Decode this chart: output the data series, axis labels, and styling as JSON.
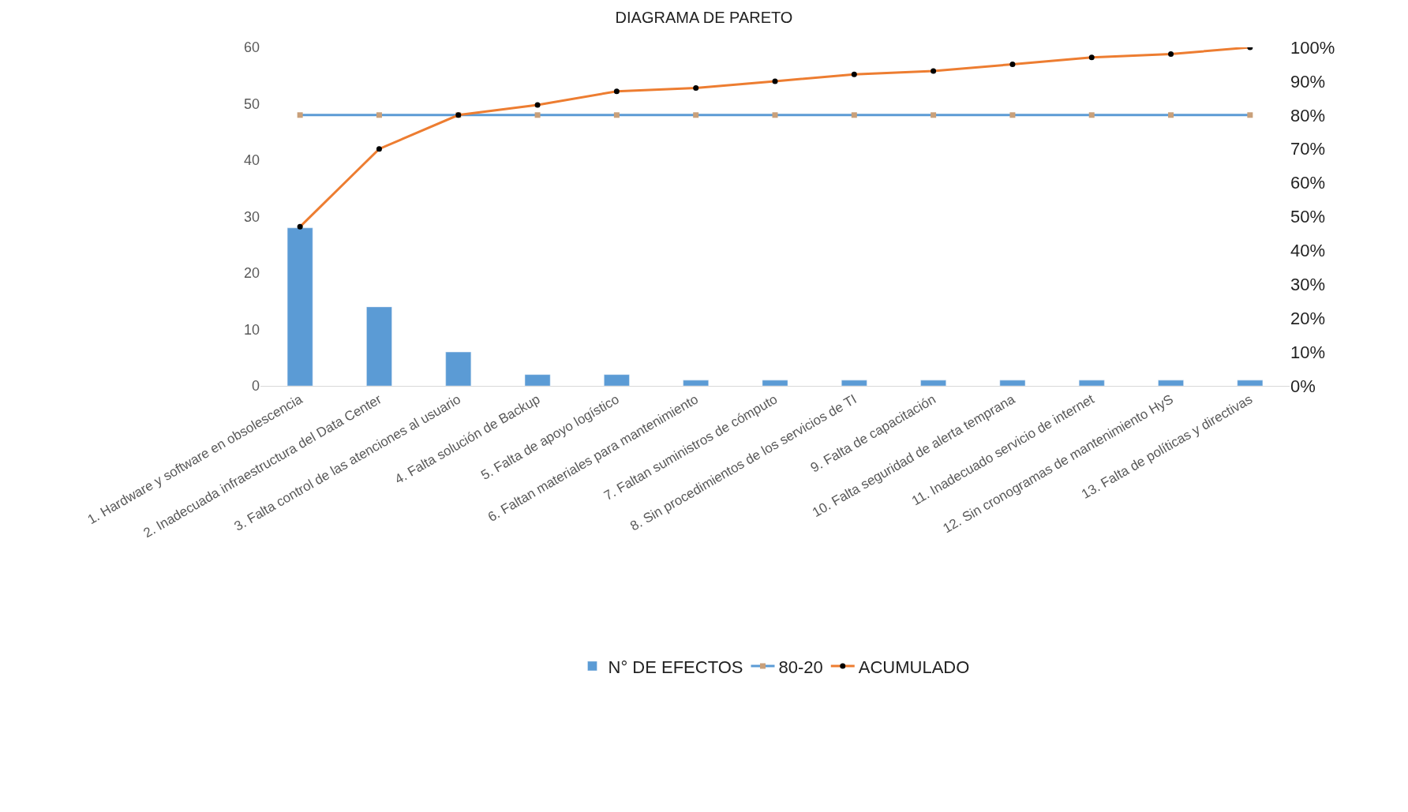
{
  "chart_data": {
    "type": "bar",
    "title": "DIAGRAMA DE PARETO",
    "categories": [
      "1. Hardware y software en obsolescencia",
      "2. Inadecuada infraestructura del Data Center",
      "3. Falta control de las atenciones al usuario",
      "4. Falta solución de Backup",
      "5. Falta de apoyo logístico",
      "6. Faltan materiales para mantenimiento",
      "7. Faltan suministros de cómputo",
      "8. Sin procedimientos de los servicios de TI",
      "9. Falta de capacitación",
      "10. Falta seguridad de alerta temprana",
      "11. Inadecuado servicio de internet",
      "12. Sin cronogramas de mantenimiento HyS",
      "13. Falta de políticas y directivas"
    ],
    "series": [
      {
        "name": "N° DE EFECTOS",
        "color": "#5b9bd5",
        "values": [
          28,
          14,
          6,
          2,
          2,
          1,
          1,
          1,
          1,
          1,
          1,
          1,
          1
        ]
      },
      {
        "name": "80-20",
        "type": "line",
        "axis": "y2",
        "color": "#5b9bd5",
        "marker": "square",
        "values": [
          80,
          80,
          80,
          80,
          80,
          80,
          80,
          80,
          80,
          80,
          80,
          80,
          80
        ]
      },
      {
        "name": "ACUMULADO",
        "type": "line",
        "axis": "y2",
        "color": "#ed7d31",
        "marker": "circle",
        "values": [
          47,
          70,
          80,
          83,
          87,
          88,
          90,
          92,
          93,
          95,
          97,
          98,
          100
        ]
      }
    ],
    "ylim": [
      0,
      60
    ],
    "yticks": [
      0,
      10,
      20,
      30,
      40,
      50,
      60
    ],
    "y2lim": [
      0,
      100
    ],
    "y2ticks": [
      {
        "value": 0,
        "label": "0%"
      },
      {
        "value": 10,
        "label": "10%"
      },
      {
        "value": 20,
        "label": "20%"
      },
      {
        "value": 30,
        "label": "30%"
      },
      {
        "value": 40,
        "label": "40%"
      },
      {
        "value": 50,
        "label": "50%"
      },
      {
        "value": 60,
        "label": "60%"
      },
      {
        "value": 70,
        "label": "70%"
      },
      {
        "value": 80,
        "label": "80%"
      },
      {
        "value": 90,
        "label": "90%"
      },
      {
        "value": 100,
        "label": "100%"
      }
    ],
    "grid": false,
    "legend": "bottom"
  }
}
